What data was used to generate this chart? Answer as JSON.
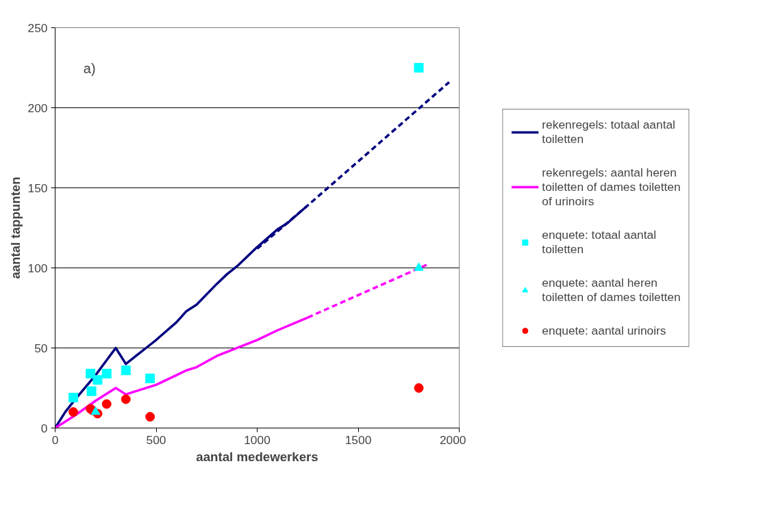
{
  "chart_data": {
    "type": "line",
    "xlabel": "aantal medewerkers",
    "ylabel": "aantal tappunten",
    "annotations": [
      "a)"
    ],
    "xlim": [
      0,
      2000
    ],
    "ylim": [
      0,
      250
    ],
    "xticks": [
      0,
      500,
      1000,
      1500,
      2000
    ],
    "yticks": [
      0,
      50,
      100,
      150,
      200,
      250
    ],
    "grid": "y",
    "legend": "right",
    "series": [
      {
        "name": "rekenregels: totaal aantal toiletten",
        "color": "#000080",
        "line_style": "solid",
        "x": [
          0,
          50,
          100,
          200,
          300,
          350,
          400,
          450,
          500,
          600,
          650,
          700,
          800,
          850,
          900,
          1000,
          1100,
          1150,
          1250
        ],
        "values": [
          0,
          10,
          18,
          33,
          50,
          40,
          45,
          50,
          55,
          66,
          73,
          77,
          90,
          96,
          101,
          113,
          124,
          128,
          139
        ]
      },
      {
        "color": "#000080",
        "line_style": "dashed",
        "x": [
          1000,
          1250,
          1950
        ],
        "values": [
          112,
          139,
          216
        ]
      },
      {
        "name": "rekenregels: aantal heren toiletten of dames toiletten of urinoirs",
        "color": "#ff00ff",
        "line_style": "solid",
        "x": [
          0,
          100,
          200,
          300,
          350,
          400,
          500,
          650,
          700,
          800,
          1000,
          1100,
          1250
        ],
        "values": [
          0,
          8,
          17,
          25,
          21,
          23,
          27,
          36,
          38,
          45,
          55,
          61,
          69
        ]
      },
      {
        "color": "#ff00ff",
        "line_style": "dashed",
        "x": [
          1250,
          1840
        ],
        "values": [
          69,
          102
        ]
      },
      {
        "name": "enquete: totaal aantal toiletten",
        "color": "#00ffff",
        "type": "scatter",
        "marker": "square",
        "x": [
          90,
          175,
          180,
          210,
          255,
          350,
          470,
          1800
        ],
        "values": [
          19,
          34,
          23,
          30,
          34,
          36,
          31,
          225
        ]
      },
      {
        "name": "enquete: aantal heren toiletten of dames toiletten",
        "color": "#00ffff",
        "type": "scatter",
        "marker": "triangle",
        "x": [
          200,
          1800
        ],
        "values": [
          10,
          100
        ]
      },
      {
        "name": "enquete: aantal urinoirs",
        "color": "#ff0000",
        "type": "scatter",
        "marker": "circle",
        "x": [
          90,
          175,
          185,
          210,
          255,
          350,
          470,
          1800
        ],
        "values": [
          10,
          12,
          11,
          9,
          15,
          18,
          7,
          25
        ]
      }
    ]
  }
}
